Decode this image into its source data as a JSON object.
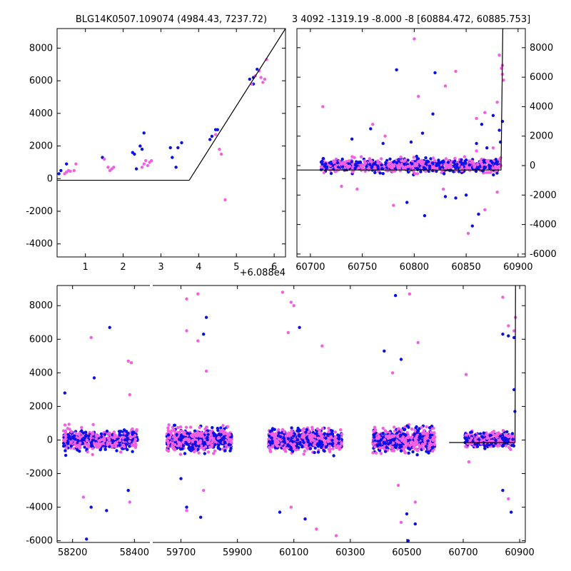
{
  "title_left": "BLG14K0507.109074 (4984.43, 7237.72)",
  "title_right": "3 4092 -1319.19 -8.000 -8 [60884.472, 60885.753]",
  "colors": {
    "blue": "#0a10e6",
    "pink": "#f060e0",
    "line": "#000000"
  },
  "chart_data": [
    {
      "id": "zoom",
      "type": "scatter",
      "xlim": [
        0.25,
        6.3
      ],
      "ylim": [
        -4800,
        9200
      ],
      "xticks": [
        1,
        2,
        3,
        4,
        5,
        6
      ],
      "yticks": [
        -4000,
        -2000,
        0,
        2000,
        4000,
        6000,
        8000
      ],
      "offset_label": "+6.088e4",
      "model_line": {
        "x": [
          0.25,
          3.75,
          6.3
        ],
        "y": [
          -100,
          -100,
          9200
        ]
      },
      "series": [
        {
          "name": "blue",
          "points": [
            [
              0.3,
              300
            ],
            [
              0.35,
              500
            ],
            [
              0.5,
              900
            ],
            [
              1.45,
              1300
            ],
            [
              2.25,
              1600
            ],
            [
              2.3,
              1500
            ],
            [
              2.35,
              600
            ],
            [
              2.45,
              2000
            ],
            [
              2.55,
              2800
            ],
            [
              2.5,
              1800
            ],
            [
              3.25,
              1900
            ],
            [
              3.3,
              1300
            ],
            [
              3.4,
              700
            ],
            [
              3.45,
              1900
            ],
            [
              3.55,
              2200
            ],
            [
              4.3,
              2400
            ],
            [
              4.35,
              2600
            ],
            [
              4.45,
              3000
            ],
            [
              4.5,
              3000
            ],
            [
              5.35,
              6100
            ],
            [
              5.45,
              6200
            ],
            [
              5.45,
              5800
            ],
            [
              5.55,
              6700
            ]
          ]
        },
        {
          "name": "pink",
          "points": [
            [
              0.45,
              300
            ],
            [
              0.5,
              400
            ],
            [
              0.55,
              500
            ],
            [
              0.6,
              450
            ],
            [
              0.7,
              500
            ],
            [
              0.75,
              900
            ],
            [
              1.5,
              1200
            ],
            [
              1.6,
              700
            ],
            [
              1.65,
              500
            ],
            [
              1.7,
              600
            ],
            [
              1.75,
              700
            ],
            [
              2.5,
              700
            ],
            [
              2.55,
              900
            ],
            [
              2.6,
              1100
            ],
            [
              2.65,
              800
            ],
            [
              2.7,
              1000
            ],
            [
              2.75,
              1100
            ],
            [
              4.45,
              2700
            ],
            [
              4.55,
              1800
            ],
            [
              4.6,
              1500
            ],
            [
              4.7,
              -1300
            ],
            [
              5.4,
              5800
            ],
            [
              5.5,
              6300
            ],
            [
              5.6,
              6600
            ],
            [
              5.65,
              6200
            ],
            [
              5.7,
              5900
            ],
            [
              5.75,
              6100
            ],
            [
              5.8,
              7300
            ]
          ]
        }
      ]
    },
    {
      "id": "recent",
      "type": "scatter",
      "xlim": [
        60687,
        60907
      ],
      "ylim": [
        -6200,
        9300
      ],
      "xticks": [
        60700,
        60750,
        60800,
        60850,
        60900
      ],
      "yticks": [
        -6000,
        -4000,
        -2000,
        0,
        2000,
        4000,
        6000,
        8000
      ],
      "model_line": {
        "x": [
          60687,
          60883.6,
          60885.3,
          60886
        ],
        "y": [
          -300,
          -300,
          9300,
          9300
        ]
      },
      "dense_band": {
        "x_range": [
          60710,
          60884
        ],
        "y_center": 0,
        "y_spread": 500,
        "count": 900
      },
      "series": [
        {
          "name": "blue",
          "points": [
            [
              60783,
              6500
            ],
            [
              60820,
              6300
            ],
            [
              60818,
              3500
            ],
            [
              60808,
              2200
            ],
            [
              60797,
              1600
            ],
            [
              60770,
              1500
            ],
            [
              60740,
              1800
            ],
            [
              60758,
              2500
            ],
            [
              60793,
              -2500
            ],
            [
              60810,
              -3400
            ],
            [
              60862,
              -3300
            ],
            [
              60856,
              -4100
            ],
            [
              60840,
              -2200
            ],
            [
              60830,
              -2100
            ],
            [
              60876,
              3400
            ],
            [
              60882,
              2400
            ],
            [
              60885,
              3000
            ],
            [
              60883,
              1600
            ],
            [
              60870,
              1200
            ],
            [
              60860,
              1500
            ],
            [
              60865,
              2800
            ],
            [
              60850,
              -2000
            ]
          ]
        },
        {
          "name": "pink",
          "points": [
            [
              60800,
              8600
            ],
            [
              60840,
              6400
            ],
            [
              60830,
              5400
            ],
            [
              60712,
              4000
            ],
            [
              60760,
              2800
            ],
            [
              60772,
              2000
            ],
            [
              60804,
              4700
            ],
            [
              60860,
              3200
            ],
            [
              60868,
              3600
            ],
            [
              60880,
              4300
            ],
            [
              60868,
              -3000
            ],
            [
              60852,
              -4600
            ],
            [
              60828,
              -1600
            ],
            [
              60780,
              -2700
            ],
            [
              60882,
              7500
            ],
            [
              60884,
              6600
            ],
            [
              60885,
              6200
            ],
            [
              60886,
              5800
            ],
            [
              60885,
              6800
            ],
            [
              60880,
              -1800
            ],
            [
              60730,
              -1400
            ],
            [
              60745,
              -1600
            ],
            [
              60860,
              1000
            ],
            [
              60876,
              1200
            ]
          ]
        }
      ]
    },
    {
      "id": "full",
      "type": "scatter",
      "ylim": [
        -6100,
        9200
      ],
      "yticks": [
        -6000,
        -4000,
        -2000,
        0,
        2000,
        4000,
        6000,
        8000
      ],
      "segments": [
        {
          "xlim": [
            58150,
            58450
          ],
          "xticks": [
            58200,
            58400
          ]
        },
        {
          "xlim": [
            59600,
            60920
          ],
          "xticks": [
            59700,
            59900,
            60100,
            60300,
            60500,
            60700,
            60900
          ]
        }
      ],
      "seasons": [
        {
          "x_range": [
            58170,
            58410
          ],
          "count": 600,
          "spread": 500
        },
        {
          "x_range": [
            59650,
            59880
          ],
          "count": 700,
          "spread": 550
        },
        {
          "x_range": [
            60010,
            60270
          ],
          "count": 700,
          "spread": 550
        },
        {
          "x_range": [
            60380,
            60600
          ],
          "count": 700,
          "spread": 550
        },
        {
          "x_range": [
            60705,
            60880
          ],
          "count": 450,
          "spread": 350
        }
      ],
      "model_line": {
        "x": [
          60650,
          60883.6,
          60885.3,
          60886
        ],
        "y": [
          -150,
          -150,
          9200,
          9200
        ]
      },
      "series": [
        {
          "name": "blue",
          "points": [
            [
              58320,
              6700
            ],
            [
              58270,
              3700
            ],
            [
              58260,
              -4000
            ],
            [
              58310,
              -4200
            ],
            [
              58245,
              -5900
            ],
            [
              58380,
              -3000
            ],
            [
              58175,
              2800
            ],
            [
              59780,
              6300
            ],
            [
              59790,
              7300
            ],
            [
              59700,
              -2300
            ],
            [
              59720,
              -4000
            ],
            [
              59770,
              -4600
            ],
            [
              60120,
              6700
            ],
            [
              60140,
              -4700
            ],
            [
              60050,
              -4300
            ],
            [
              60460,
              8600
            ],
            [
              60420,
              5300
            ],
            [
              60480,
              4800
            ],
            [
              60500,
              -4400
            ],
            [
              60530,
              -5000
            ],
            [
              60505,
              -6000
            ],
            [
              60840,
              6300
            ],
            [
              60860,
              6200
            ],
            [
              60880,
              6100
            ],
            [
              60840,
              -3000
            ],
            [
              60870,
              -4300
            ],
            [
              60880,
              3000
            ],
            [
              60883,
              1700
            ]
          ]
        },
        {
          "name": "pink",
          "points": [
            [
              58260,
              6100
            ],
            [
              58380,
              4700
            ],
            [
              58390,
              4600
            ],
            [
              58385,
              2700
            ],
            [
              58235,
              -3400
            ],
            [
              58385,
              -3700
            ],
            [
              59720,
              8400
            ],
            [
              59760,
              8700
            ],
            [
              59720,
              6500
            ],
            [
              59760,
              5900
            ],
            [
              59790,
              4100
            ],
            [
              59720,
              -4200
            ],
            [
              59780,
              -3000
            ],
            [
              60060,
              8800
            ],
            [
              60090,
              8200
            ],
            [
              60100,
              8000
            ],
            [
              60080,
              6400
            ],
            [
              60200,
              5600
            ],
            [
              60180,
              -5300
            ],
            [
              60250,
              -5700
            ],
            [
              60090,
              -4000
            ],
            [
              60450,
              4000
            ],
            [
              60510,
              8700
            ],
            [
              60540,
              5800
            ],
            [
              60470,
              -2700
            ],
            [
              60480,
              -4900
            ],
            [
              60530,
              -3700
            ],
            [
              60840,
              8500
            ],
            [
              60860,
              6800
            ],
            [
              60885,
              7300
            ],
            [
              60880,
              6500
            ],
            [
              60710,
              3900
            ],
            [
              60720,
              -1300
            ],
            [
              60860,
              -3500
            ]
          ]
        }
      ]
    }
  ]
}
